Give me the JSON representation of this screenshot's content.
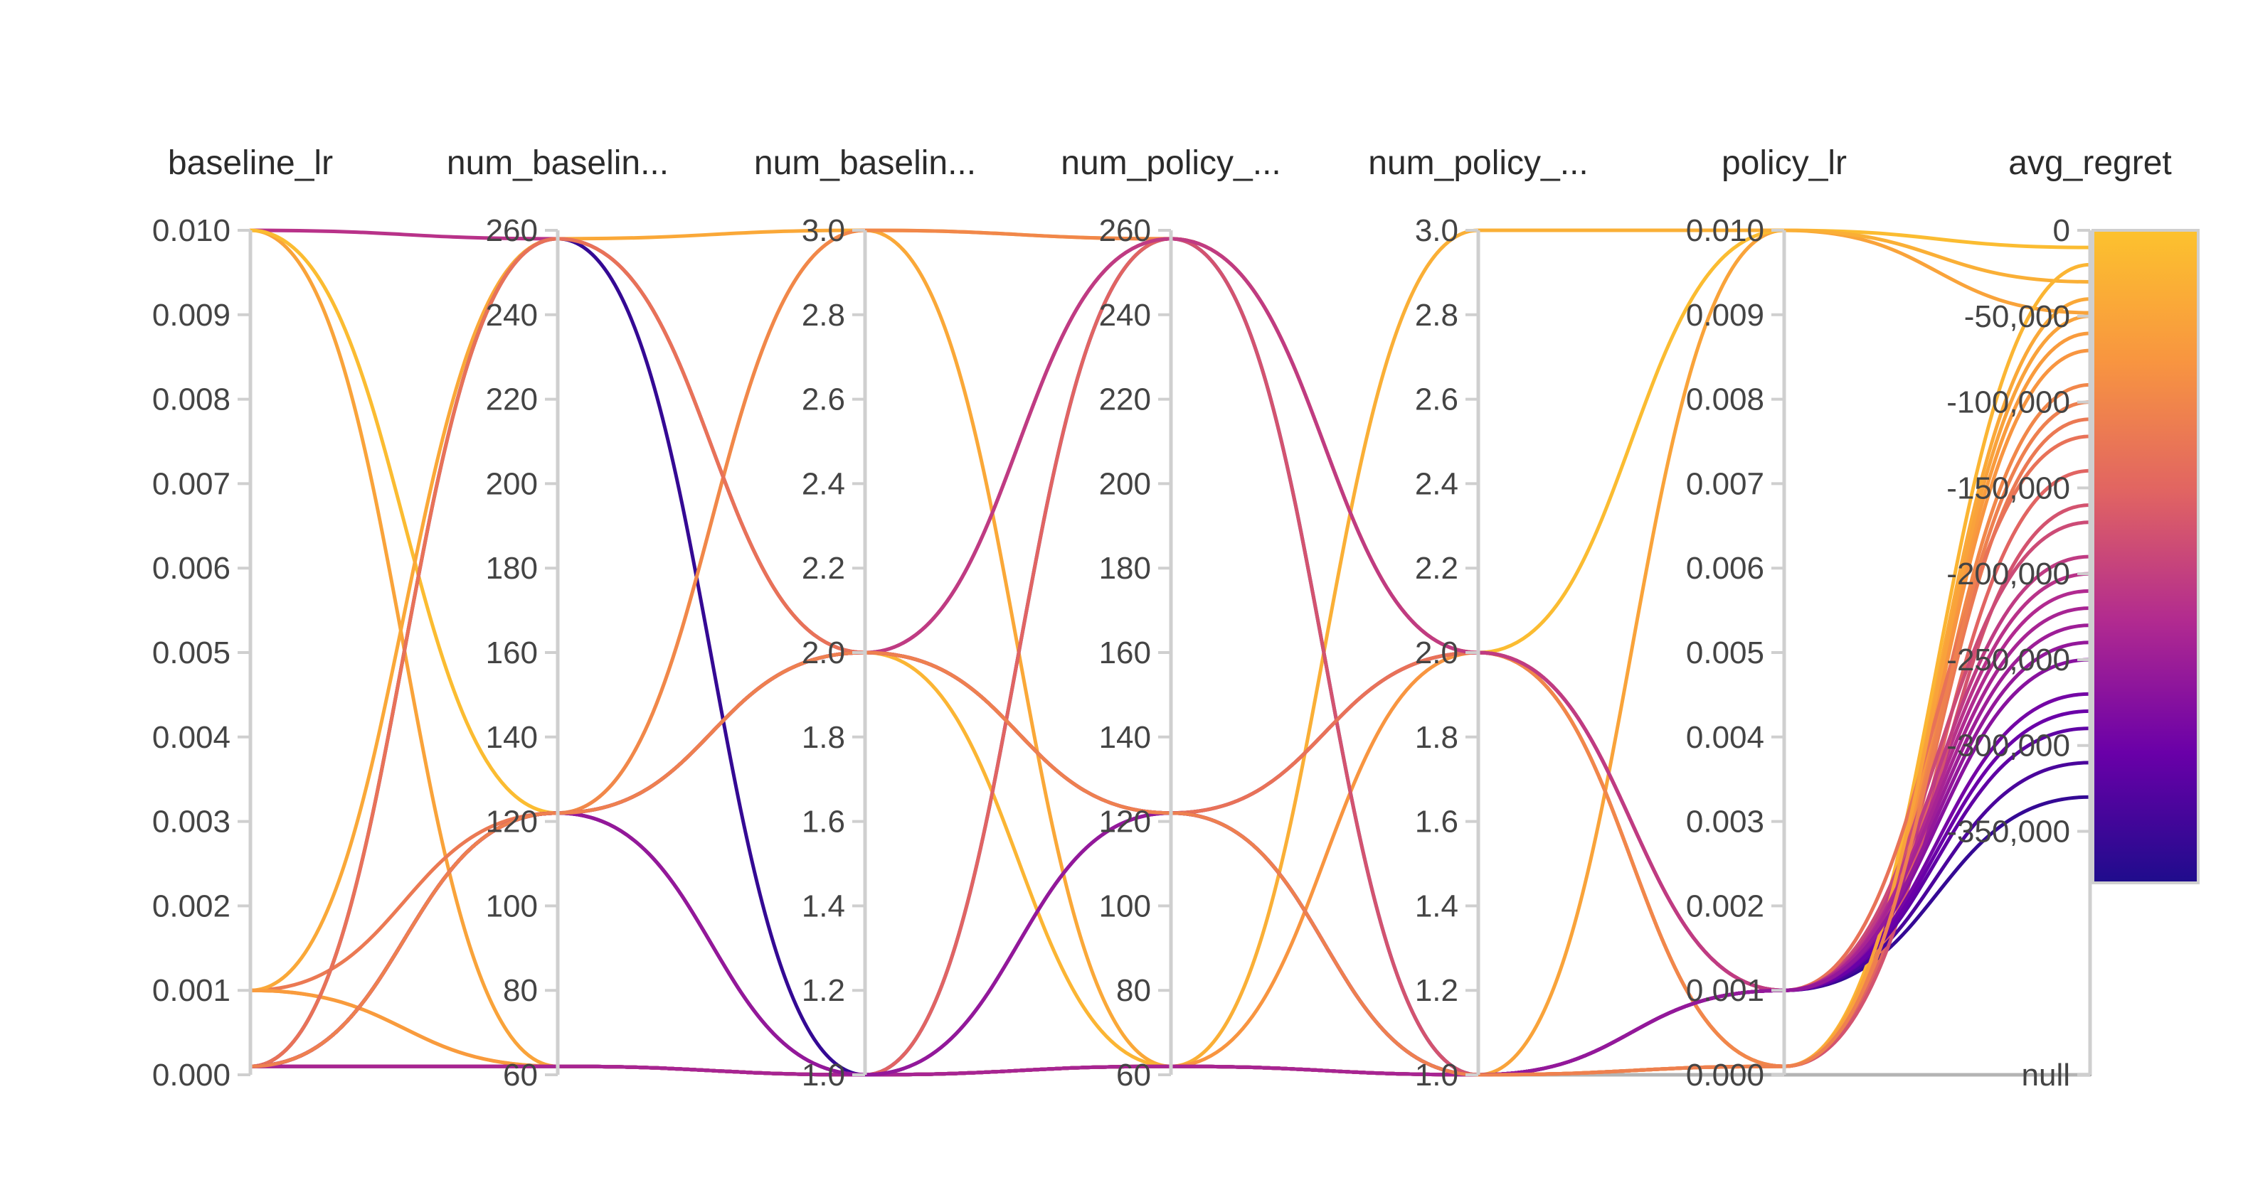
{
  "chart_data": {
    "type": "parallel_coordinates",
    "color_by": "avg_regret",
    "axes": [
      {
        "name": "baseline_lr",
        "min": 0,
        "max": 0.01,
        "ticks": [
          0.01,
          0.009,
          0.008,
          0.007,
          0.006,
          0.005,
          0.004,
          0.003,
          0.002,
          0.001,
          0
        ],
        "tick_labels": [
          "0.010",
          "0.009",
          "0.008",
          "0.007",
          "0.006",
          "0.005",
          "0.004",
          "0.003",
          "0.002",
          "0.001",
          "0.000"
        ]
      },
      {
        "name": "num_baselin...",
        "min": 60,
        "max": 260,
        "ticks": [
          260,
          240,
          220,
          200,
          180,
          160,
          140,
          120,
          100,
          80,
          60
        ],
        "tick_labels": [
          "260",
          "240",
          "220",
          "200",
          "180",
          "160",
          "140",
          "120",
          "100",
          "80",
          "60"
        ]
      },
      {
        "name": "num_baselin...",
        "min": 1,
        "max": 3,
        "ticks": [
          3,
          2.8,
          2.6,
          2.4,
          2.2,
          2,
          1.8,
          1.6,
          1.4,
          1.2,
          1
        ],
        "tick_labels": [
          "3.0",
          "2.8",
          "2.6",
          "2.4",
          "2.2",
          "2.0",
          "1.8",
          "1.6",
          "1.4",
          "1.2",
          "1.0"
        ]
      },
      {
        "name": "num_policy_...",
        "min": 60,
        "max": 260,
        "ticks": [
          260,
          240,
          220,
          200,
          180,
          160,
          140,
          120,
          100,
          80,
          60
        ],
        "tick_labels": [
          "260",
          "240",
          "220",
          "200",
          "180",
          "160",
          "140",
          "120",
          "100",
          "80",
          "60"
        ]
      },
      {
        "name": "num_policy_...",
        "min": 1,
        "max": 3,
        "ticks": [
          3,
          2.8,
          2.6,
          2.4,
          2.2,
          2,
          1.8,
          1.6,
          1.4,
          1.2,
          1
        ],
        "tick_labels": [
          "3.0",
          "2.8",
          "2.6",
          "2.4",
          "2.2",
          "2.0",
          "1.8",
          "1.6",
          "1.4",
          "1.2",
          "1.0"
        ]
      },
      {
        "name": "policy_lr",
        "min": 0,
        "max": 0.01,
        "ticks": [
          0.01,
          0.009,
          0.008,
          0.007,
          0.006,
          0.005,
          0.004,
          0.003,
          0.002,
          0.001,
          0
        ],
        "tick_labels": [
          "0.010",
          "0.009",
          "0.008",
          "0.007",
          "0.006",
          "0.005",
          "0.004",
          "0.003",
          "0.002",
          "0.001",
          "0.000"
        ]
      },
      {
        "name": "avg_regret",
        "min": -380000,
        "max": 0,
        "ticks": [
          0,
          -50000,
          -100000,
          -150000,
          -200000,
          -250000,
          -300000,
          -350000
        ],
        "tick_labels": [
          "0",
          "-50,000",
          "-100,000",
          "-150,000",
          "-200,000",
          "-250,000",
          "-300,000",
          "-350,000"
        ],
        "null_label": "null"
      }
    ],
    "colorscale": {
      "min": -350000,
      "max": 0,
      "colors": [
        "#1f0c8c",
        "#6a00a8",
        "#b12a90",
        "#e16462",
        "#f89540",
        "#fcc22e"
      ]
    },
    "runs": [
      {
        "values": [
          0.01,
          258,
          2,
          258,
          2,
          0.001,
          -200000
        ]
      },
      {
        "values": [
          0.01,
          62,
          1,
          62,
          1,
          0.01,
          -48000
        ]
      },
      {
        "values": [
          0.01,
          122,
          3,
          258,
          2,
          0.01,
          -10000
        ]
      },
      {
        "values": [
          0.001,
          62,
          1,
          62,
          3,
          0.01,
          -30000
        ]
      },
      {
        "values": [
          0.001,
          122,
          2,
          122,
          2,
          0.0001,
          -110000
        ]
      },
      {
        "values": [
          0.001,
          258,
          3,
          62,
          1,
          0.0001,
          -40000
        ]
      },
      {
        "values": [
          0.001,
          62,
          1,
          62,
          1,
          0.0001,
          -60000
        ]
      },
      {
        "values": [
          0.0001,
          258,
          1,
          258,
          1,
          0.001,
          -330000
        ]
      },
      {
        "values": [
          0.0001,
          122,
          1,
          122,
          1,
          null,
          null
        ]
      },
      {
        "values": [
          0.0001,
          122,
          2,
          122,
          2,
          0.001,
          -230000
        ]
      },
      {
        "values": [
          0.0001,
          122,
          2,
          62,
          1,
          0.0001,
          -20000
        ]
      },
      {
        "values": [
          0.0001,
          62,
          1,
          62,
          2,
          0.0001,
          -70000
        ]
      },
      {
        "values": [
          0.0001,
          122,
          1,
          258,
          2,
          0.0001,
          -140000
        ]
      },
      {
        "values": [
          0.0001,
          62,
          1,
          62,
          1,
          0.001,
          -310000
        ]
      },
      {
        "values": [
          0.0001,
          122,
          3,
          258,
          2,
          0.0001,
          -90000
        ]
      },
      {
        "values": [
          0.0001,
          258,
          2,
          258,
          1,
          0.0001,
          -160000
        ]
      },
      {
        "values": [
          0.0001,
          62,
          1,
          62,
          1,
          0.001,
          -290000
        ]
      },
      {
        "values": [
          0.0001,
          122,
          2,
          122,
          2,
          0.001,
          -170000
        ]
      },
      {
        "values": [
          0.0001,
          258,
          2,
          122,
          2,
          0.001,
          -120000
        ]
      },
      {
        "values": [
          0.0001,
          122,
          1,
          122,
          1,
          0.001,
          -270000
        ]
      },
      {
        "values": [
          0.0001,
          62,
          1,
          62,
          1,
          0.001,
          -280000
        ]
      },
      {
        "values": [
          0.0001,
          62,
          1,
          62,
          1,
          0.001,
          -250000
        ]
      },
      {
        "values": [
          0.0001,
          122,
          2,
          258,
          2,
          0.001,
          -190000
        ]
      },
      {
        "values": [
          0.0001,
          62,
          1,
          62,
          1,
          0.0001,
          -50000
        ]
      },
      {
        "values": [
          0.0001,
          122,
          2,
          122,
          1,
          0.001,
          -210000
        ]
      },
      {
        "values": [
          0.0001,
          62,
          1,
          62,
          1,
          0.001,
          -220000
        ]
      },
      {
        "values": [
          0.0001,
          122,
          1,
          122,
          1,
          0.001,
          -240000
        ]
      },
      {
        "values": [
          0.0001,
          122,
          2,
          122,
          1,
          0.0001,
          -100000
        ]
      }
    ]
  }
}
